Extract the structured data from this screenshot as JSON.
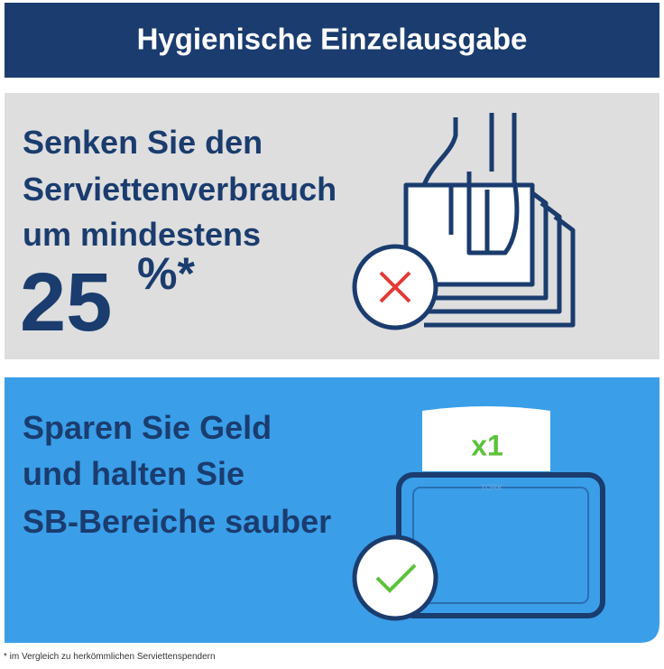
{
  "header": {
    "title": "Hygienische Einzelausgabe"
  },
  "panel_1": {
    "lines": [
      "Senken Sie den",
      "Serviettenverbrauch",
      "um mindestens"
    ],
    "number": "25",
    "suffix": "%*"
  },
  "panel_2": {
    "lines": [
      "Sparen Sie Geld",
      "und halten Sie",
      "SB-Bereiche sauber"
    ],
    "badge": "x1",
    "brand": "TORK"
  },
  "footnote": "* im Vergleich zu herkömmlichen Serviettenspendern"
}
